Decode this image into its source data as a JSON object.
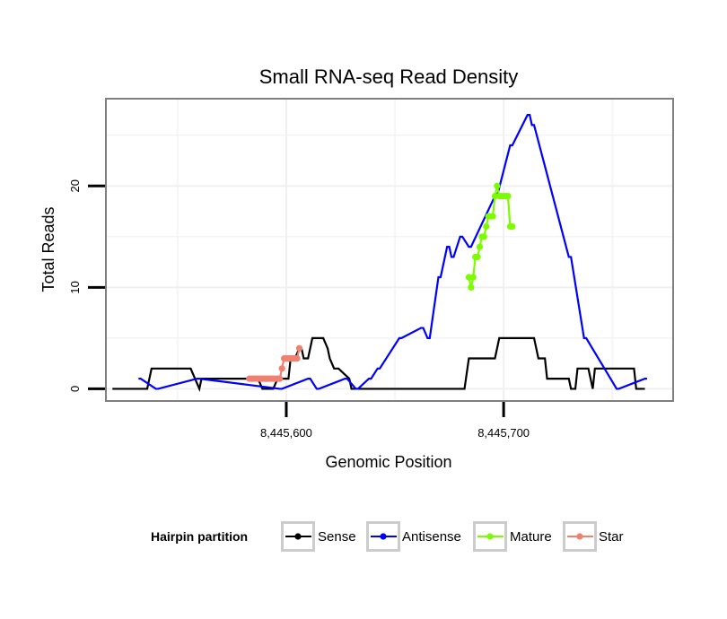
{
  "chart_data": {
    "type": "line",
    "title": "Small RNA-seq Read Density",
    "xlabel": "Genomic Position",
    "ylabel": "Total Reads",
    "xlim": [
      8445517,
      8445778
    ],
    "ylim": [
      -1.2,
      28.6
    ],
    "x_ticks": [
      8445600,
      8445700
    ],
    "x_tick_labels": [
      "8,445,600",
      "8,445,700"
    ],
    "y_ticks": [
      0,
      10,
      20
    ],
    "y_tick_labels": [
      "0",
      "10",
      "20"
    ],
    "legend": {
      "title": "Hairpin partition",
      "position": "bottom",
      "entries": [
        {
          "label": "Sense",
          "color": "#000000"
        },
        {
          "label": "Antisense",
          "color": "#0000ff"
        },
        {
          "label": "Mature",
          "color": "#7cfc00"
        },
        {
          "label": "Star",
          "color": "#f08070"
        }
      ]
    },
    "series": [
      {
        "name": "Sense",
        "color": "#000000",
        "markers": false,
        "x": [
          8445520,
          8445536,
          8445538,
          8445556,
          8445558,
          8445560,
          8445561,
          8445587,
          8445589,
          8445594,
          8445596,
          8445601,
          8445602,
          8445604,
          8445606,
          8445607,
          8445608,
          8445610,
          8445612,
          8445617,
          8445619,
          8445620,
          8445622,
          8445624,
          8445629,
          8445630,
          8445682,
          8445684,
          8445696,
          8445698,
          8445714,
          8445715,
          8445716,
          8445719,
          8445720,
          8445730,
          8445731,
          8445733,
          8445734,
          8445739,
          8445740,
          8445741,
          8445742,
          8445760,
          8445761,
          8445765
        ],
        "y": [
          0,
          0,
          2,
          2,
          1,
          0,
          1,
          1,
          0,
          0,
          1,
          1,
          3,
          3,
          4,
          4,
          3,
          3,
          5,
          5,
          4,
          3,
          2,
          2,
          1,
          0,
          0,
          3,
          3,
          5,
          5,
          4,
          3,
          3,
          1,
          1,
          0,
          0,
          2,
          2,
          1,
          0,
          2,
          2,
          0,
          0
        ]
      },
      {
        "name": "Antisense",
        "color": "#0000ff",
        "markers": false,
        "x": [
          8445532,
          8445533,
          8445540,
          8445541,
          8445559,
          8445560,
          8445597,
          8445598,
          8445610,
          8445611,
          8445614,
          8445615,
          8445627,
          8445628,
          8445632,
          8445633,
          8445638,
          8445639,
          8445642,
          8445643,
          8445652,
          8445653,
          8445662,
          8445663,
          8445665,
          8445666,
          8445670,
          8445671,
          8445674,
          8445675,
          8445676,
          8445677,
          8445680,
          8445681,
          8445684,
          8445685,
          8445696,
          8445697,
          8445703,
          8445704,
          8445711,
          8445712,
          8445713,
          8445714,
          8445730,
          8445731,
          8445737,
          8445738,
          8445752,
          8445753,
          8445765,
          8445766
        ],
        "y": [
          1,
          1,
          0,
          0,
          1,
          1,
          0,
          0,
          1,
          1,
          0,
          0,
          1,
          1,
          0,
          0,
          1,
          1,
          2,
          2,
          5,
          5,
          6,
          6,
          5,
          5,
          11,
          11,
          14,
          14,
          13,
          13,
          15,
          15,
          14,
          14,
          19,
          19,
          24,
          24,
          27,
          27,
          26,
          26,
          13,
          13,
          5,
          5,
          0,
          0,
          1,
          1
        ]
      },
      {
        "name": "Mature",
        "color": "#7cfc00",
        "markers": true,
        "x": [
          8445684,
          8445685,
          8445686,
          8445687,
          8445688,
          8445689,
          8445690,
          8445691,
          8445692,
          8445693,
          8445694,
          8445695,
          8445696,
          8445697,
          8445698,
          8445699,
          8445700,
          8445701,
          8445702,
          8445703,
          8445704
        ],
        "y": [
          11,
          10,
          11,
          13,
          13,
          14,
          15,
          15,
          16,
          17,
          17,
          17,
          19,
          20,
          19,
          19,
          19,
          19,
          19,
          16,
          16
        ]
      },
      {
        "name": "Star",
        "color": "#f08070",
        "markers": true,
        "x": [
          8445583,
          8445584,
          8445585,
          8445586,
          8445587,
          8445588,
          8445589,
          8445590,
          8445591,
          8445592,
          8445593,
          8445594,
          8445595,
          8445596,
          8445597,
          8445598,
          8445599,
          8445600,
          8445601,
          8445602,
          8445603,
          8445604,
          8445605,
          8445606
        ],
        "y": [
          1,
          1,
          1,
          1,
          1,
          1,
          1,
          1,
          1,
          1,
          1,
          1,
          1,
          1,
          1,
          2,
          3,
          3,
          3,
          3,
          3,
          3,
          3,
          4
        ]
      }
    ]
  }
}
